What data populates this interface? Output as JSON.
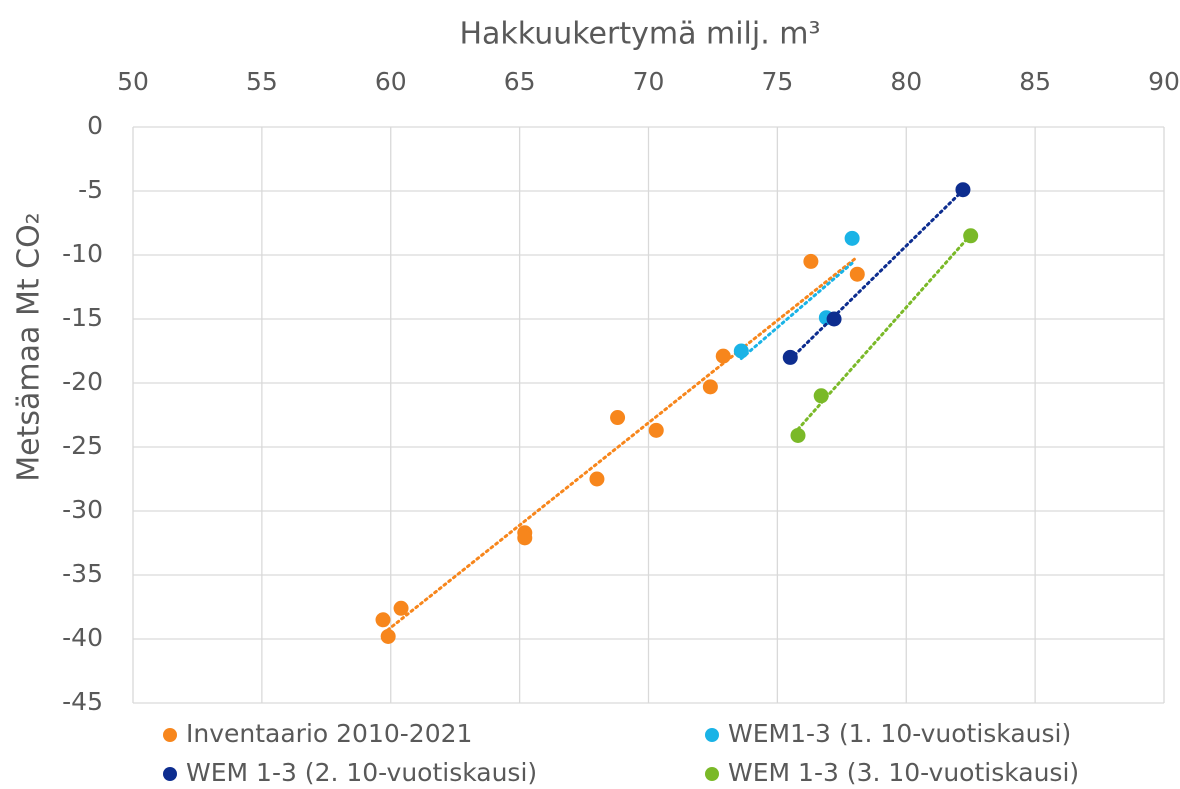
{
  "chart_data": {
    "type": "scatter",
    "title": "Hakkuukertymä milj. m³",
    "y_label": "Metsämaa Mt CO₂",
    "xaxis_position": "top",
    "grid": true,
    "trendline": true,
    "xlim": [
      50,
      90
    ],
    "xticks": [
      50,
      55,
      60,
      65,
      70,
      75,
      80,
      85,
      90
    ],
    "ylim": [
      -45,
      0
    ],
    "yticks": [
      0,
      -5,
      -10,
      -15,
      -20,
      -25,
      -30,
      -35,
      -40,
      -45
    ],
    "series": [
      {
        "name": "Inventaario 2010-2021",
        "color": "#f7861c",
        "x": [
          59.7,
          60.4,
          59.9,
          65.2,
          65.2,
          68.8,
          68.0,
          70.3,
          72.4,
          72.9,
          76.3,
          78.1
        ],
        "values": [
          -38.5,
          -37.6,
          -39.8,
          -31.7,
          -32.1,
          -22.7,
          -27.5,
          -23.7,
          -20.3,
          -17.9,
          -10.5,
          -11.5
        ]
      },
      {
        "name": "WEM1-3 (1. 10-vuotiskausi)",
        "color": "#1ab3e6",
        "x": [
          73.6,
          76.9,
          77.9
        ],
        "values": [
          -17.5,
          -14.9,
          -8.7
        ]
      },
      {
        "name": "WEM 1-3 (2. 10-vuotiskausi)",
        "color": "#0d2d8f",
        "x": [
          75.5,
          77.2,
          82.2
        ],
        "values": [
          -18.0,
          -15.0,
          -4.9
        ]
      },
      {
        "name": "WEM 1-3 (3. 10-vuotiskausi)",
        "color": "#7ab928",
        "x": [
          75.8,
          76.7,
          82.5
        ],
        "values": [
          -24.1,
          -21.0,
          -8.5
        ]
      }
    ]
  }
}
